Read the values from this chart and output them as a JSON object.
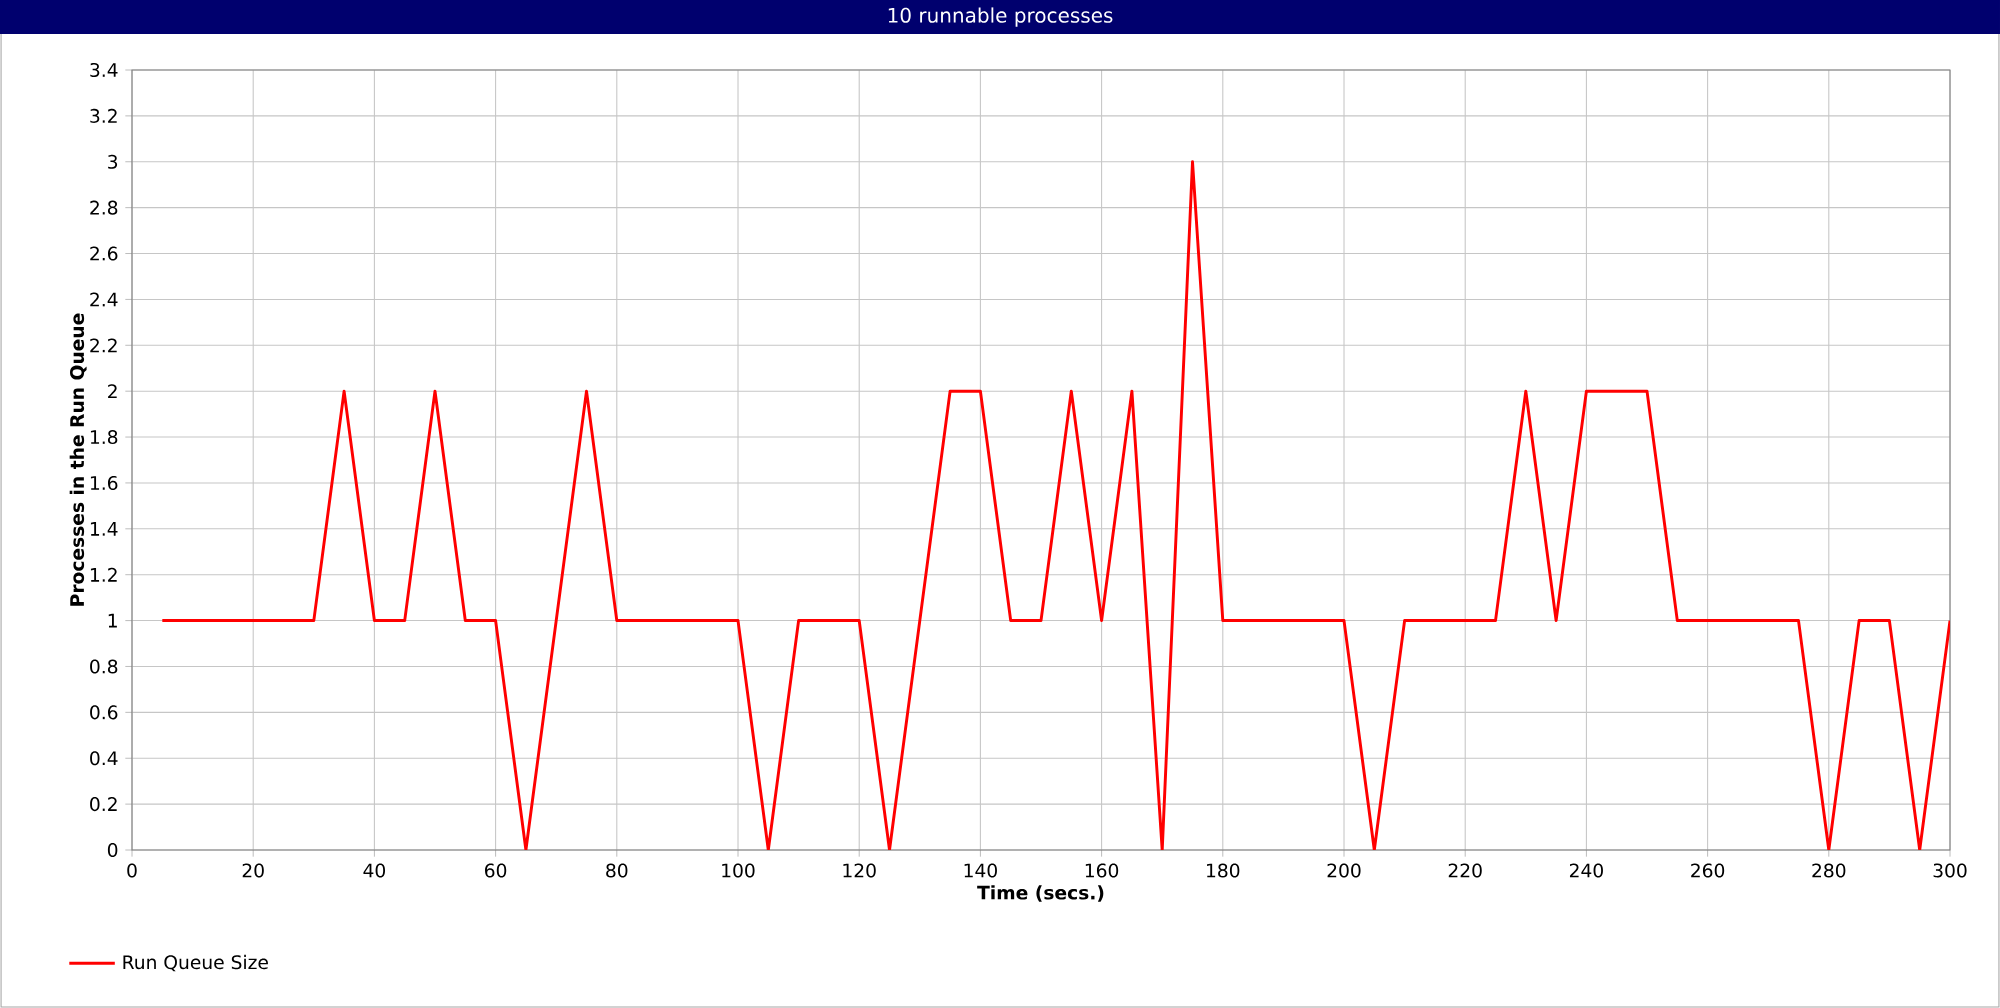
{
  "chart_data": {
    "type": "line",
    "title": "10 runnable processes",
    "xlabel": "Time (secs.)",
    "ylabel": "Processes in the Run Queue",
    "x": [
      5,
      10,
      15,
      20,
      25,
      30,
      35,
      40,
      45,
      50,
      55,
      60,
      65,
      70,
      75,
      80,
      85,
      90,
      95,
      100,
      105,
      110,
      115,
      120,
      125,
      130,
      135,
      140,
      145,
      150,
      155,
      160,
      165,
      170,
      175,
      180,
      185,
      190,
      195,
      200,
      205,
      210,
      215,
      220,
      225,
      230,
      235,
      240,
      245,
      250,
      255,
      260,
      265,
      270,
      275,
      280,
      285,
      290,
      295,
      300
    ],
    "series": [
      {
        "name": "Run Queue Size",
        "color": "#ff0000",
        "values": [
          1,
          1,
          1,
          1,
          1,
          1,
          2,
          1,
          1,
          2,
          1,
          1,
          0,
          1,
          2,
          1,
          1,
          1,
          1,
          1,
          0,
          1,
          1,
          1,
          0,
          1,
          2,
          2,
          1,
          1,
          2,
          1,
          2,
          0,
          3,
          1,
          1,
          1,
          1,
          1,
          0,
          1,
          1,
          1,
          1,
          2,
          1,
          2,
          2,
          2,
          1,
          1,
          1,
          1,
          1,
          0,
          1,
          1,
          0,
          1
        ]
      }
    ],
    "xlim": [
      0,
      300
    ],
    "ylim": [
      0,
      3.4
    ],
    "xticks": [
      0,
      20,
      40,
      60,
      80,
      100,
      120,
      140,
      160,
      180,
      200,
      220,
      240,
      260,
      280,
      300
    ],
    "yticks": [
      0,
      0.2,
      0.4,
      0.6,
      0.8,
      1,
      1.2,
      1.4,
      1.6,
      1.8,
      2,
      2.2,
      2.4,
      2.6,
      2.8,
      3,
      3.2,
      3.4
    ],
    "grid": true,
    "legend": "bottom left",
    "marker": "none",
    "line_style": "solid"
  }
}
